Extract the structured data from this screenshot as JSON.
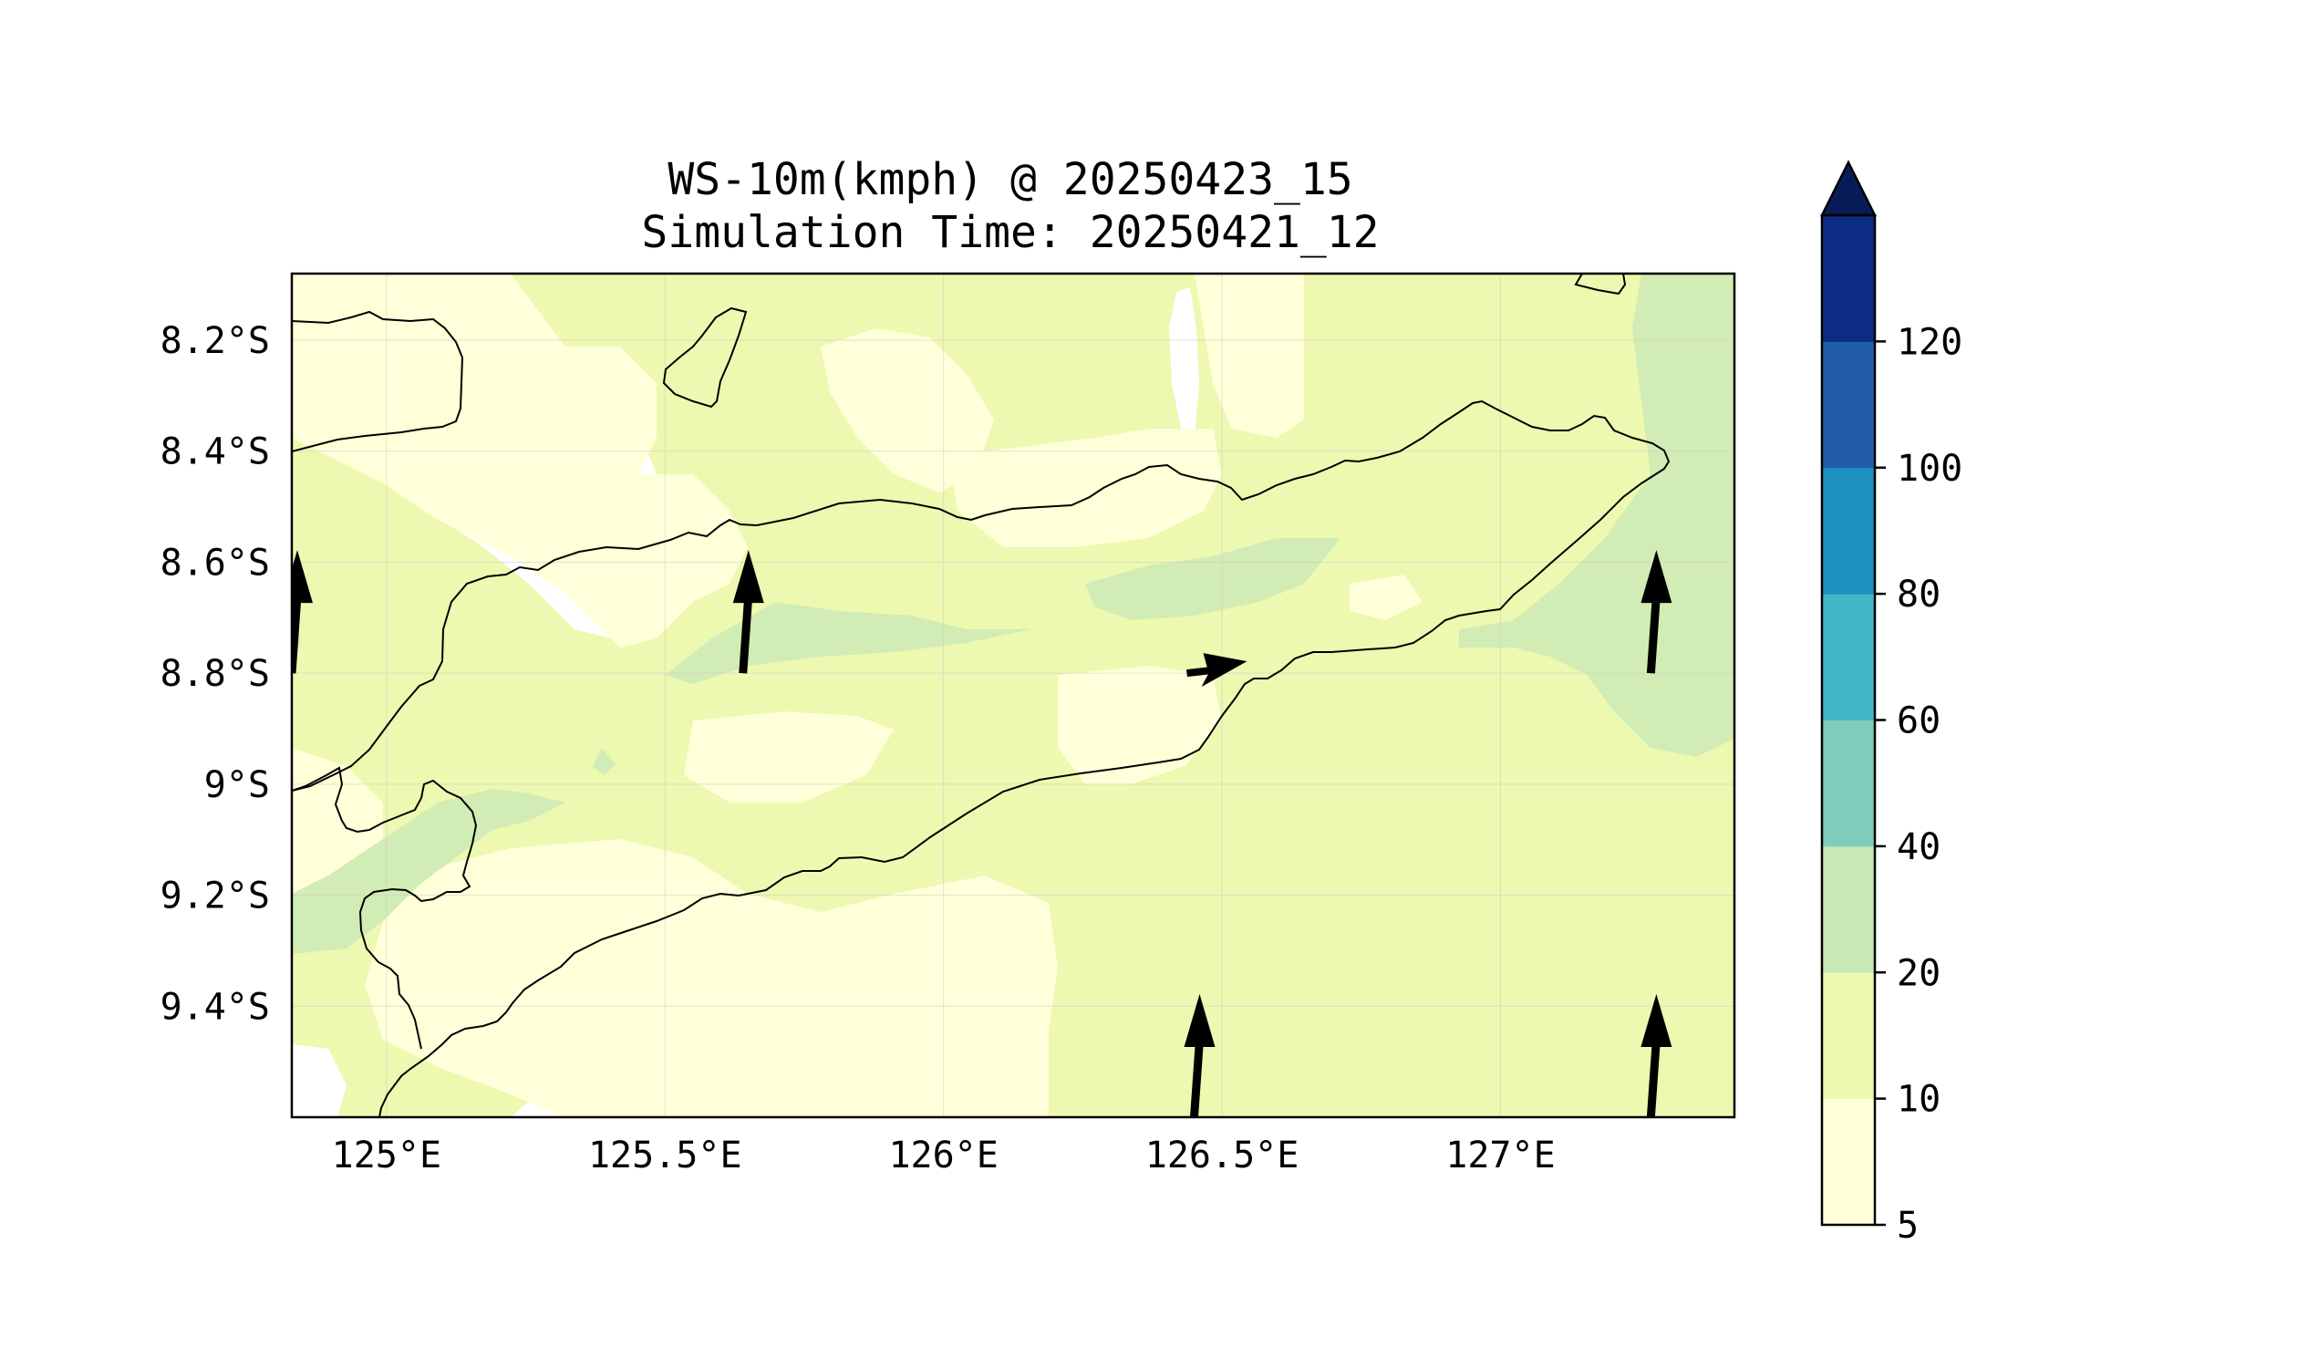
{
  "title": {
    "line1": "WS-10m(kmph) @ 20250423_15",
    "line2": "Simulation Time: 20250421_12"
  },
  "map": {
    "lon_range": [
      124.83,
      127.42
    ],
    "lat_range": [
      -9.6,
      -8.08
    ],
    "lon_ticks": [
      {
        "value": 125.0,
        "label": "125°E"
      },
      {
        "value": 125.5,
        "label": "125.5°E"
      },
      {
        "value": 126.0,
        "label": "126°E"
      },
      {
        "value": 126.5,
        "label": "126.5°E"
      },
      {
        "value": 127.0,
        "label": "127°E"
      }
    ],
    "lat_ticks": [
      {
        "value": -8.2,
        "label": "8.2°S"
      },
      {
        "value": -8.4,
        "label": "8.4°S"
      },
      {
        "value": -8.6,
        "label": "8.6°S"
      },
      {
        "value": -8.8,
        "label": "8.8°S"
      },
      {
        "value": -9.0,
        "label": "9°S"
      },
      {
        "value": -9.2,
        "label": "9.2°S"
      },
      {
        "value": -9.4,
        "label": "9.4°S"
      }
    ],
    "gridlines": true,
    "wind_vectors": [
      {
        "lon": 125.64,
        "lat": -8.8,
        "dir": "north"
      },
      {
        "lon": 127.27,
        "lat": -8.8,
        "dir": "north"
      },
      {
        "lon": 126.45,
        "lat": -8.8,
        "dir": "east"
      },
      {
        "lon": 126.45,
        "lat": -9.6,
        "dir": "north"
      },
      {
        "lon": 127.27,
        "lat": -9.6,
        "dir": "north"
      },
      {
        "lon": 124.83,
        "lat": -8.8,
        "dir": "north"
      }
    ]
  },
  "colorbar": {
    "levels": [
      "5",
      "10",
      "20",
      "40",
      "60",
      "80",
      "100",
      "120"
    ],
    "colors": [
      "#ffffd9",
      "#edf8b1",
      "#c7e9b4",
      "#7fcdbb",
      "#41b6c4",
      "#1d91c0",
      "#225ea8",
      "#0c2c84"
    ],
    "extend_color": "#081d58",
    "extend": "max"
  },
  "chart_data": {
    "type": "heatmap",
    "title": "WS-10m(kmph) @ 20250423_15",
    "subtitle": "Simulation Time: 20250421_12",
    "xlabel": "",
    "ylabel": "",
    "xlim": [
      124.83,
      127.42
    ],
    "ylim": [
      -9.6,
      -8.08
    ],
    "colorbar_levels": [
      5,
      10,
      20,
      40,
      60,
      80,
      100,
      120
    ],
    "grid": true
  }
}
